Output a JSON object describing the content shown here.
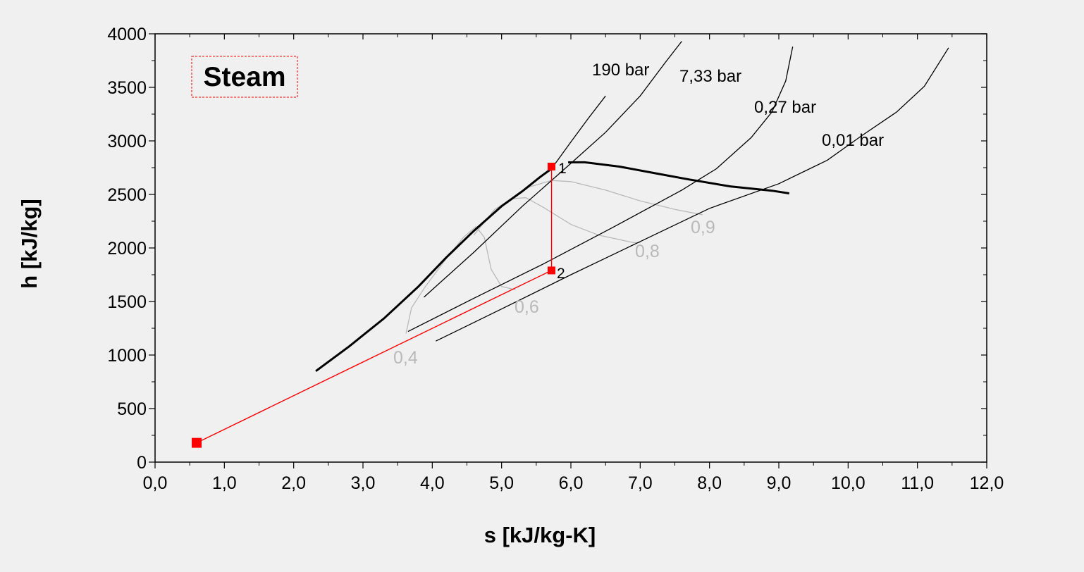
{
  "chart_data": {
    "type": "line",
    "title": "Steam",
    "xlabel": "s [kJ/kg-K]",
    "ylabel": "h [kJ/kg]",
    "xlim": [
      0,
      12
    ],
    "ylim": [
      0,
      4000
    ],
    "x_ticks": [
      "0,0",
      "1,0",
      "2,0",
      "3,0",
      "4,0",
      "5,0",
      "6,0",
      "7,0",
      "8,0",
      "9,0",
      "10,0",
      "11,0",
      "12,0"
    ],
    "y_ticks": [
      "0",
      "500",
      "1000",
      "1500",
      "2000",
      "2500",
      "3000",
      "3500",
      "4000"
    ],
    "grid": false,
    "saturation_dome": {
      "color": "#000000",
      "liquid": [
        [
          2.32,
          850
        ],
        [
          2.8,
          1080
        ],
        [
          3.3,
          1340
        ],
        [
          3.8,
          1640
        ],
        [
          4.2,
          1910
        ],
        [
          4.6,
          2160
        ],
        [
          5.0,
          2390
        ],
        [
          5.3,
          2530
        ],
        [
          5.55,
          2660
        ],
        [
          5.72,
          2740
        ]
      ],
      "vapor": [
        [
          5.96,
          2800
        ],
        [
          6.2,
          2800
        ],
        [
          6.7,
          2760
        ],
        [
          7.2,
          2700
        ],
        [
          7.7,
          2640
        ],
        [
          8.3,
          2575
        ],
        [
          8.9,
          2535
        ],
        [
          9.15,
          2510
        ]
      ]
    },
    "isobars": [
      {
        "label": "190 bar",
        "color": "#000000",
        "points": [
          [
            5.72,
            2740
          ],
          [
            6.0,
            2990
          ],
          [
            6.25,
            3210
          ],
          [
            6.5,
            3420
          ]
        ]
      },
      {
        "label": "7,33 bar",
        "color": "#000000",
        "points": [
          [
            3.88,
            1540
          ],
          [
            4.6,
            1960
          ],
          [
            5.3,
            2390
          ],
          [
            6.0,
            2790
          ],
          [
            6.5,
            3080
          ],
          [
            7.0,
            3420
          ],
          [
            7.36,
            3730
          ],
          [
            7.6,
            3930
          ]
        ]
      },
      {
        "label": "0,27 bar",
        "color": "#000000",
        "points": [
          [
            3.65,
            1220
          ],
          [
            4.6,
            1530
          ],
          [
            5.6,
            1850
          ],
          [
            6.6,
            2190
          ],
          [
            7.6,
            2540
          ],
          [
            8.1,
            2740
          ],
          [
            8.6,
            3030
          ],
          [
            8.9,
            3270
          ],
          [
            9.1,
            3560
          ],
          [
            9.2,
            3880
          ]
        ]
      },
      {
        "label": "0,01 bar",
        "color": "#000000",
        "points": [
          [
            4.05,
            1130
          ],
          [
            5.0,
            1430
          ],
          [
            6.0,
            1750
          ],
          [
            7.0,
            2060
          ],
          [
            8.0,
            2370
          ],
          [
            9.0,
            2600
          ],
          [
            9.7,
            2820
          ],
          [
            10.2,
            3050
          ],
          [
            10.7,
            3270
          ],
          [
            11.1,
            3510
          ],
          [
            11.45,
            3870
          ]
        ]
      }
    ],
    "quality_lines": [
      {
        "label": "0,4",
        "color": "#b9b9b9",
        "points": [
          [
            3.62,
            1200
          ],
          [
            3.7,
            1440
          ],
          [
            3.9,
            1640
          ],
          [
            4.2,
            1900
          ],
          [
            4.45,
            2100
          ],
          [
            4.63,
            2200
          ],
          [
            4.75,
            2100
          ],
          [
            4.85,
            1800
          ],
          [
            5.0,
            1640
          ],
          [
            5.2,
            1610
          ]
        ]
      },
      {
        "label": "0,6",
        "color": "#b9b9b9",
        "points": [
          [
            4.6,
            2120
          ],
          [
            4.9,
            2360
          ],
          [
            5.15,
            2460
          ],
          [
            5.35,
            2470
          ],
          [
            5.6,
            2380
          ],
          [
            6.0,
            2220
          ],
          [
            6.4,
            2120
          ],
          [
            6.9,
            2050
          ],
          [
            7.0,
            2050
          ]
        ]
      },
      {
        "label": "0,8",
        "color": "#b9b9b9",
        "points": [
          [
            5.0,
            2400
          ],
          [
            5.4,
            2570
          ],
          [
            5.72,
            2630
          ],
          [
            6.0,
            2620
          ],
          [
            6.5,
            2540
          ],
          [
            7.0,
            2440
          ],
          [
            7.5,
            2360
          ],
          [
            7.9,
            2310
          ]
        ]
      },
      {
        "label": "0,9",
        "color": "#b9b9b9",
        "points": []
      }
    ],
    "cycle": {
      "color": "#ff0000",
      "states": [
        {
          "label": "1",
          "s": 5.72,
          "h": 2760
        },
        {
          "label": "2",
          "s": 5.72,
          "h": 1790
        },
        {
          "label": "",
          "s": 0.6,
          "h": 180
        }
      ]
    }
  }
}
